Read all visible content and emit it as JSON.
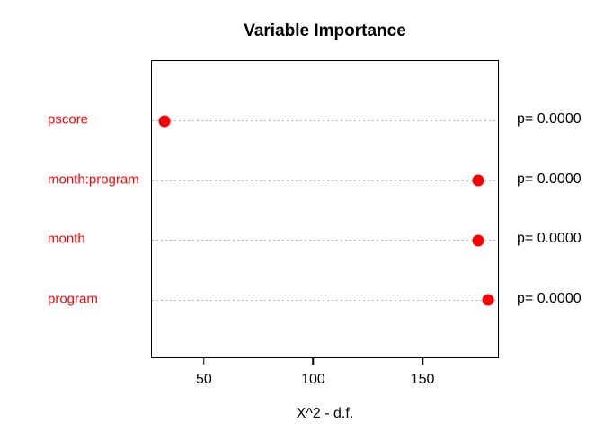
{
  "title": "Variable Importance",
  "colors": {
    "point": "#ff0000",
    "category_label": "#ff0000",
    "grid": "#b4b4b4",
    "axis": "#000000",
    "text": "#000000",
    "background": "#ffffff"
  },
  "chart_data": {
    "type": "scatter",
    "subtype": "dotchart",
    "title": "Variable Importance",
    "xlabel": "X^2 - d.f.",
    "ylabel": "",
    "xlim": [
      25.8,
      184.9
    ],
    "xticks": [
      50,
      100,
      150
    ],
    "grid": "dotted horizontal line per category, full plot width",
    "legend": "none",
    "categories": [
      "pscore",
      "month:program",
      "month",
      "program"
    ],
    "values": [
      31.4,
      175.0,
      175.0,
      179.6
    ],
    "annotations": [
      "p= 0.0000",
      "p= 0.0000",
      "p= 0.0000",
      "p= 0.0000"
    ]
  }
}
